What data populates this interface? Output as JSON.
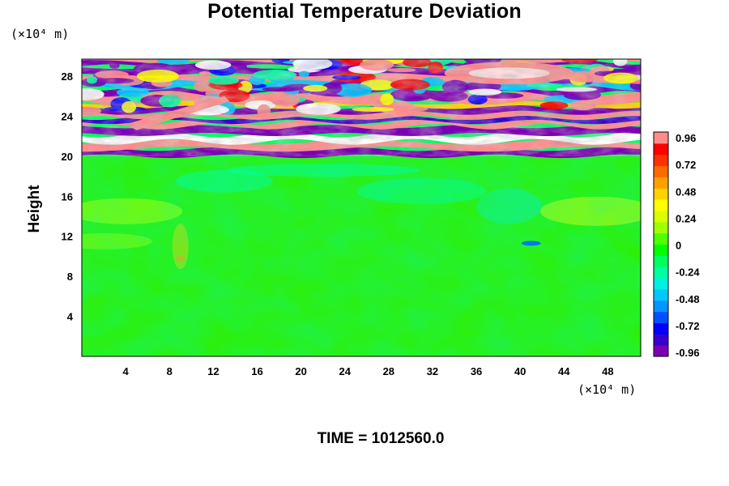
{
  "chart_data": {
    "type": "heatmap",
    "title": "Potential Temperature Deviation",
    "ylabel": "Height",
    "y_unit": "(×10⁴ m)",
    "x_unit": "(×10⁴ m)",
    "x_ticks": [
      4,
      8,
      12,
      16,
      20,
      24,
      28,
      32,
      36,
      40,
      44,
      48
    ],
    "y_ticks": [
      4,
      8,
      12,
      16,
      20,
      24,
      28
    ],
    "xlim": [
      0,
      51
    ],
    "ylim": [
      0,
      29.7
    ],
    "colorbar": {
      "ticks": [
        "0.96",
        "0.72",
        "0.48",
        "0.24",
        "0",
        "-0.24",
        "-0.48",
        "-0.72",
        "-0.96"
      ],
      "range": [
        -0.96,
        0.96
      ],
      "colors": [
        "#7b00b4",
        "#3800d0",
        "#0000ff",
        "#0050ff",
        "#0096ff",
        "#00c8ff",
        "#00f0e0",
        "#00ffa0",
        "#00ff60",
        "#00ff00",
        "#50ff00",
        "#a0ff00",
        "#d8ff00",
        "#ffff00",
        "#ffd200",
        "#ffa000",
        "#ff6a00",
        "#ff3000",
        "#ff0000",
        "#ff8c8c"
      ]
    },
    "features": {
      "lower_layer_range": [
        0,
        20
      ],
      "lower_layer_value": 0.0,
      "upper_layer_range": [
        20,
        29.7
      ],
      "upper_layer_value_range": [
        -0.96,
        0.96
      ]
    },
    "footer": "TIME = 1012560.0"
  }
}
